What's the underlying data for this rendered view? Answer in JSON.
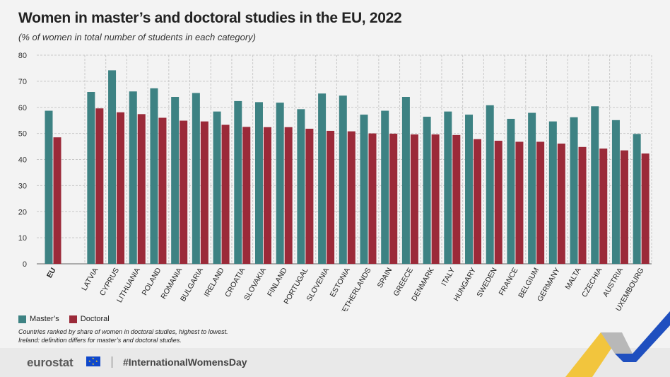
{
  "title": "Women in master’s and doctoral studies in the EU, 2022",
  "subtitle": "(% of women in total number of students in each category)",
  "legend": {
    "masters": "Master’s",
    "doctoral": "Doctoral"
  },
  "notes": {
    "line1": "Countries ranked by share of women in doctoral studies, highest to lowest.",
    "line2": "Ireland: definition differs for master’s and doctoral studies."
  },
  "footer": {
    "brand": "eurostat",
    "hashtag": "#InternationalWomensDay"
  },
  "colors": {
    "masters": "#3d8283",
    "doctoral": "#9b2a39",
    "grid": "#c8c8c8"
  },
  "chart_data": {
    "type": "bar",
    "title": "Women in master’s and doctoral studies in the EU, 2022",
    "subtitle": "(% of women in total number of students in each category)",
    "ylim": [
      0,
      80
    ],
    "yticks": [
      0,
      10,
      20,
      30,
      40,
      50,
      60,
      70,
      80
    ],
    "grid": true,
    "legend_position": "bottom-left",
    "categories": [
      "EU",
      "LATVIA",
      "CYPRUS",
      "LITHUANIA",
      "POLAND",
      "ROMANIA",
      "BULGARIA",
      "IRELAND",
      "CROATIA",
      "SLOVAKIA",
      "FINLAND",
      "PORTUGAL",
      "SLOVENIA",
      "ESTONIA",
      "NETHERLANDS",
      "SPAIN",
      "GREECE",
      "DENMARK",
      "ITALY",
      "HUNGARY",
      "SWEDEN",
      "FRANCE",
      "BELGIUM",
      "GERMANY",
      "MALTA",
      "CZECHIA",
      "AUSTRIA",
      "LUXEMBOURG"
    ],
    "series": [
      {
        "name": "Master’s",
        "values": [
          58.7,
          65.9,
          74.2,
          66.1,
          67.3,
          64.0,
          65.5,
          58.4,
          62.4,
          62.0,
          61.8,
          59.3,
          65.3,
          64.5,
          57.2,
          58.7,
          64.0,
          56.4,
          58.4,
          57.2,
          60.8,
          55.6,
          57.9,
          54.6,
          56.2,
          60.4,
          55.1,
          49.8
        ]
      },
      {
        "name": "Doctoral",
        "values": [
          48.5,
          59.6,
          58.1,
          57.4,
          56.0,
          54.9,
          54.6,
          53.3,
          52.5,
          52.4,
          52.4,
          51.8,
          51.0,
          50.8,
          50.0,
          49.9,
          49.6,
          49.6,
          49.4,
          47.8,
          47.2,
          46.8,
          46.8,
          46.1,
          44.8,
          44.2,
          43.5,
          42.3
        ]
      }
    ]
  }
}
